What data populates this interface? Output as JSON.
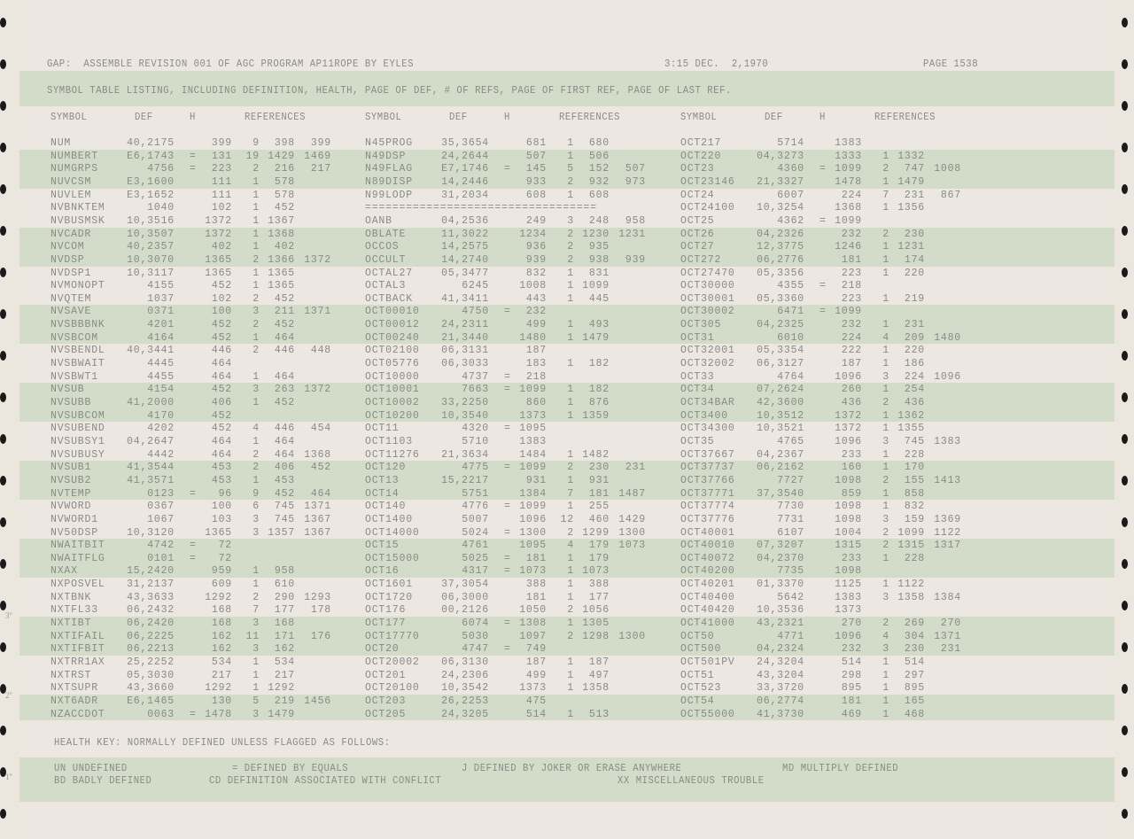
{
  "header": {
    "title": "GAP:  ASSEMBLE REVISION 001 OF AGC PROGRAM AP11ROPE BY EYLES",
    "time_date": "3:15 DEC.  2,1970",
    "page": "PAGE 1538",
    "subtitle": "SYMBOL TABLE LISTING, INCLUDING DEFINITION, HEALTH, PAGE OF DEF, # OF REFS, PAGE OF FIRST REF, PAGE OF LAST REF.",
    "columns": [
      "SYMBOL",
      "DEF",
      "H",
      "REFERENCES"
    ]
  },
  "groups": [
    [
      [
        "NUM",
        "40,2175",
        "",
        "399",
        "9",
        "398",
        "399"
      ],
      [
        "NUMBERT",
        "E6,1743",
        "=",
        "131",
        "19",
        "1429",
        "1469"
      ],
      [
        "NUMGRPS",
        "4756",
        "=",
        "223",
        "2",
        "216",
        "217"
      ],
      [
        "NUVCSM",
        "E3,1600",
        "",
        "111",
        "1",
        "578",
        ""
      ],
      [
        "NUVLEM",
        "E3,1652",
        "",
        "111",
        "1",
        "578",
        ""
      ],
      [
        "NVBNKTEM",
        "1040",
        "",
        "102",
        "1",
        "452",
        ""
      ],
      [
        "NVBUSMSK",
        "10,3516",
        "",
        "1372",
        "1",
        "1367",
        ""
      ],
      [
        "NVCADR",
        "10,3507",
        "",
        "1372",
        "1",
        "1368",
        ""
      ],
      [
        "NVCOM",
        "40,2357",
        "",
        "402",
        "1",
        "402",
        ""
      ],
      [
        "NVDSP",
        "10,3070",
        "",
        "1365",
        "2",
        "1366",
        "1372"
      ],
      [
        "NVDSP1",
        "10,3117",
        "",
        "1365",
        "1",
        "1365",
        ""
      ],
      [
        "NVMONOPT",
        "4155",
        "",
        "452",
        "1",
        "1365",
        ""
      ],
      [
        "NVQTEM",
        "1037",
        "",
        "102",
        "2",
        "452",
        ""
      ],
      [
        "NVSAVE",
        "0371",
        "",
        "100",
        "3",
        "211",
        "1371"
      ],
      [
        "NVSBBBNK",
        "4201",
        "",
        "452",
        "2",
        "452",
        ""
      ],
      [
        "NVSBCOM",
        "4164",
        "",
        "452",
        "1",
        "464",
        ""
      ],
      [
        "NVSBENDL",
        "40,3441",
        "",
        "446",
        "2",
        "446",
        "448"
      ],
      [
        "NVSBWAIT",
        "4445",
        "",
        "464",
        "",
        "",
        ""
      ],
      [
        "NVSBWT1",
        "4455",
        "",
        "464",
        "1",
        "464",
        ""
      ],
      [
        "NVSUB",
        "4154",
        "",
        "452",
        "3",
        "263",
        "1372"
      ],
      [
        "NVSUBB",
        "41,2000",
        "",
        "406",
        "1",
        "452",
        ""
      ],
      [
        "NVSUBCOM",
        "4170",
        "",
        "452",
        "",
        "",
        ""
      ],
      [
        "NVSUBEND",
        "4202",
        "",
        "452",
        "4",
        "446",
        "454"
      ],
      [
        "NVSUBSY1",
        "04,2647",
        "",
        "464",
        "1",
        "464",
        ""
      ],
      [
        "NVSUBUSY",
        "4442",
        "",
        "464",
        "2",
        "464",
        "1368"
      ],
      [
        "NVSUB1",
        "41,3544",
        "",
        "453",
        "2",
        "406",
        "452"
      ],
      [
        "NVSUB2",
        "41,3571",
        "",
        "453",
        "1",
        "453",
        ""
      ],
      [
        "NVTEMP",
        "0123",
        "=",
        "96",
        "9",
        "452",
        "464"
      ],
      [
        "NVWORD",
        "0367",
        "",
        "100",
        "6",
        "745",
        "1371"
      ],
      [
        "NVWORD1",
        "1067",
        "",
        "103",
        "3",
        "745",
        "1367"
      ],
      [
        "NV50DSP",
        "10,3120",
        "",
        "1365",
        "3",
        "1357",
        "1367"
      ],
      [
        "NWAITBIT",
        "4742",
        "=",
        "72",
        "",
        "",
        ""
      ],
      [
        "NWAITFLG",
        "0101",
        "=",
        "72",
        "",
        "",
        ""
      ],
      [
        "NXAX",
        "15,2420",
        "",
        "959",
        "1",
        "958",
        ""
      ],
      [
        "NXPOSVEL",
        "31,2137",
        "",
        "609",
        "1",
        "610",
        ""
      ],
      [
        "NXTBNK",
        "43,3633",
        "",
        "1292",
        "2",
        "290",
        "1293"
      ],
      [
        "NXTFL33",
        "06,2432",
        "",
        "168",
        "7",
        "177",
        "178"
      ],
      [
        "NXTIBT",
        "06,2420",
        "",
        "168",
        "3",
        "168",
        ""
      ],
      [
        "NXTIFAIL",
        "06,2225",
        "",
        "162",
        "11",
        "171",
        "176"
      ],
      [
        "NXTIFBIT",
        "06,2213",
        "",
        "162",
        "3",
        "162",
        ""
      ],
      [
        "NXTRR1AX",
        "25,2252",
        "",
        "534",
        "1",
        "534",
        ""
      ],
      [
        "NXTRST",
        "05,3030",
        "",
        "217",
        "1",
        "217",
        ""
      ],
      [
        "NXTSUPR",
        "43,3660",
        "",
        "1292",
        "1",
        "1292",
        ""
      ],
      [
        "NXT6ADR",
        "E6,1465",
        "",
        "130",
        "5",
        "219",
        "1456"
      ],
      [
        "NZACCDOT",
        "0063",
        "=",
        "1478",
        "3",
        "1479",
        ""
      ]
    ],
    [
      [
        "N45PROG",
        "35,3654",
        "",
        "681",
        "1",
        "680",
        ""
      ],
      [
        "N49DSP",
        "24,2644",
        "",
        "507",
        "1",
        "506",
        ""
      ],
      [
        "N49FLAG",
        "E7,1746",
        "=",
        "145",
        "5",
        "152",
        "507"
      ],
      [
        "N89DISP",
        "14,2446",
        "",
        "933",
        "2",
        "932",
        "973"
      ],
      [
        "N99LODP",
        "31,2034",
        "",
        "608",
        "1",
        "608",
        ""
      ],
      [
        "==================================",
        "",
        "",
        "",
        "",
        "",
        ""
      ],
      [
        "OANB",
        "04,2536",
        "",
        "249",
        "3",
        "248",
        "958"
      ],
      [
        "OBLATE",
        "11,3022",
        "",
        "1234",
        "2",
        "1230",
        "1231"
      ],
      [
        "OCCOS",
        "14,2575",
        "",
        "936",
        "2",
        "935",
        ""
      ],
      [
        "OCCULT",
        "14,2740",
        "",
        "939",
        "2",
        "938",
        "939"
      ],
      [
        "OCTAL27",
        "05,3477",
        "",
        "832",
        "1",
        "831",
        ""
      ],
      [
        "OCTAL3",
        "6245",
        "",
        "1008",
        "1",
        "1099",
        ""
      ],
      [
        "OCTBACK",
        "41,3411",
        "",
        "443",
        "1",
        "445",
        ""
      ],
      [
        "OCT00010",
        "4750",
        "=",
        "232",
        "",
        "",
        ""
      ],
      [
        "OCT00012",
        "24,2311",
        "",
        "499",
        "1",
        "493",
        ""
      ],
      [
        "OCT00240",
        "21,3440",
        "",
        "1480",
        "1",
        "1479",
        ""
      ],
      [
        "OCT02100",
        "06,3131",
        "",
        "187",
        "",
        "",
        ""
      ],
      [
        "OCT05776",
        "06,3033",
        "",
        "183",
        "1",
        "182",
        ""
      ],
      [
        "OCT10000",
        "4737",
        "=",
        "218",
        "",
        "",
        ""
      ],
      [
        "OCT10001",
        "7663",
        "=",
        "1099",
        "1",
        "182",
        ""
      ],
      [
        "OCT10002",
        "33,2250",
        "",
        "860",
        "1",
        "876",
        ""
      ],
      [
        "OCT10200",
        "10,3540",
        "",
        "1373",
        "1",
        "1359",
        ""
      ],
      [
        "OCT11",
        "4320",
        "=",
        "1095",
        "",
        "",
        ""
      ],
      [
        "OCT1103",
        "5710",
        "",
        "1383",
        "",
        "",
        ""
      ],
      [
        "OCT11276",
        "21,3634",
        "",
        "1484",
        "1",
        "1482",
        ""
      ],
      [
        "OCT120",
        "4775",
        "=",
        "1099",
        "2",
        "230",
        "231"
      ],
      [
        "OCT13",
        "15,2217",
        "",
        "931",
        "1",
        "931",
        ""
      ],
      [
        "OCT14",
        "5751",
        "",
        "1384",
        "7",
        "181",
        "1487"
      ],
      [
        "OCT140",
        "4776",
        "=",
        "1099",
        "1",
        "255",
        ""
      ],
      [
        "OCT1400",
        "5007",
        "",
        "1096",
        "12",
        "460",
        "1429"
      ],
      [
        "OCT14000",
        "5024",
        "=",
        "1300",
        "2",
        "1299",
        "1300"
      ],
      [
        "OCT15",
        "4761",
        "",
        "1095",
        "4",
        "179",
        "1073"
      ],
      [
        "OCT15000",
        "5025",
        "=",
        "181",
        "1",
        "179",
        ""
      ],
      [
        "OCT16",
        "4317",
        "=",
        "1073",
        "1",
        "1073",
        ""
      ],
      [
        "OCT1601",
        "37,3054",
        "",
        "388",
        "1",
        "388",
        ""
      ],
      [
        "OCT1720",
        "06,3000",
        "",
        "181",
        "1",
        "177",
        ""
      ],
      [
        "OCT176",
        "00,2126",
        "",
        "1050",
        "2",
        "1056",
        ""
      ],
      [
        "OCT177",
        "6074",
        "=",
        "1308",
        "1",
        "1305",
        ""
      ],
      [
        "OCT17770",
        "5030",
        "",
        "1097",
        "2",
        "1298",
        "1300"
      ],
      [
        "OCT20",
        "4747",
        "=",
        "749",
        "",
        "",
        ""
      ],
      [
        "OCT20002",
        "06,3130",
        "",
        "187",
        "1",
        "187",
        ""
      ],
      [
        "OCT201",
        "24,2306",
        "",
        "499",
        "1",
        "497",
        ""
      ],
      [
        "OCT20100",
        "10,3542",
        "",
        "1373",
        "1",
        "1358",
        ""
      ],
      [
        "OCT203",
        "26,2253",
        "",
        "475",
        "",
        "",
        ""
      ],
      [
        "OCT205",
        "24,3205",
        "",
        "514",
        "1",
        "513",
        ""
      ]
    ],
    [
      [
        "OCT217",
        "5714",
        "",
        "1383",
        "",
        "",
        ""
      ],
      [
        "OCT220",
        "04,3273",
        "",
        "1333",
        "1",
        "1332",
        ""
      ],
      [
        "OCT23",
        "4360",
        "=",
        "1099",
        "2",
        "747",
        "1008"
      ],
      [
        "OCT23146",
        "21,3327",
        "",
        "1478",
        "1",
        "1479",
        ""
      ],
      [
        "OCT24",
        "6007",
        "",
        "224",
        "7",
        "231",
        "867"
      ],
      [
        "OCT24100",
        "10,3254",
        "",
        "1368",
        "1",
        "1356",
        ""
      ],
      [
        "OCT25",
        "4362",
        "=",
        "1099",
        "",
        "",
        ""
      ],
      [
        "OCT26",
        "04,2326",
        "",
        "232",
        "2",
        "230",
        ""
      ],
      [
        "OCT27",
        "12,3775",
        "",
        "1246",
        "1",
        "1231",
        ""
      ],
      [
        "OCT272",
        "06,2776",
        "",
        "181",
        "1",
        "174",
        ""
      ],
      [
        "OCT27470",
        "05,3356",
        "",
        "223",
        "1",
        "220",
        ""
      ],
      [
        "OCT30000",
        "4355",
        "=",
        "218",
        "",
        "",
        ""
      ],
      [
        "OCT30001",
        "05,3360",
        "",
        "223",
        "1",
        "219",
        ""
      ],
      [
        "OCT30002",
        "6471",
        "=",
        "1099",
        "",
        "",
        ""
      ],
      [
        "OCT305",
        "04,2325",
        "",
        "232",
        "1",
        "231",
        ""
      ],
      [
        "OCT31",
        "6010",
        "",
        "224",
        "4",
        "209",
        "1480"
      ],
      [
        "OCT32001",
        "05,3354",
        "",
        "222",
        "1",
        "220",
        ""
      ],
      [
        "OCT32002",
        "06,3127",
        "",
        "187",
        "1",
        "186",
        ""
      ],
      [
        "OCT33",
        "4764",
        "",
        "1096",
        "3",
        "224",
        "1096"
      ],
      [
        "OCT34",
        "07,2624",
        "",
        "260",
        "1",
        "254",
        ""
      ],
      [
        "OCT34BAR",
        "42,3600",
        "",
        "436",
        "2",
        "436",
        ""
      ],
      [
        "OCT3400",
        "10,3512",
        "",
        "1372",
        "1",
        "1362",
        ""
      ],
      [
        "OCT34300",
        "10,3521",
        "",
        "1372",
        "1",
        "1355",
        ""
      ],
      [
        "OCT35",
        "4765",
        "",
        "1096",
        "3",
        "745",
        "1383"
      ],
      [
        "OCT37667",
        "04,2367",
        "",
        "233",
        "1",
        "228",
        ""
      ],
      [
        "OCT37737",
        "06,2162",
        "",
        "160",
        "1",
        "170",
        ""
      ],
      [
        "OCT37766",
        "7727",
        "",
        "1098",
        "2",
        "155",
        "1413"
      ],
      [
        "OCT37771",
        "37,3540",
        "",
        "859",
        "1",
        "858",
        ""
      ],
      [
        "OCT37774",
        "7730",
        "",
        "1098",
        "1",
        "832",
        ""
      ],
      [
        "OCT37776",
        "7731",
        "",
        "1098",
        "3",
        "159",
        "1369"
      ],
      [
        "OCT40001",
        "6107",
        "",
        "1004",
        "2",
        "1099",
        "1122"
      ],
      [
        "OCT40010",
        "07,3207",
        "",
        "1315",
        "2",
        "1315",
        "1317"
      ],
      [
        "OCT40072",
        "04,2370",
        "",
        "233",
        "1",
        "228",
        ""
      ],
      [
        "OCT40200",
        "7735",
        "",
        "1098",
        "",
        "",
        ""
      ],
      [
        "OCT40201",
        "01,3370",
        "",
        "1125",
        "1",
        "1122",
        ""
      ],
      [
        "OCT40400",
        "5642",
        "",
        "1383",
        "3",
        "1358",
        "1384"
      ],
      [
        "OCT40420",
        "10,3536",
        "",
        "1373",
        "",
        "",
        ""
      ],
      [
        "OCT41000",
        "43,2321",
        "",
        "270",
        "2",
        "269",
        "270"
      ],
      [
        "OCT50",
        "4771",
        "",
        "1096",
        "4",
        "304",
        "1371"
      ],
      [
        "OCT500",
        "04,2324",
        "",
        "232",
        "3",
        "230",
        "231"
      ],
      [
        "OCT501PV",
        "24,3204",
        "",
        "514",
        "1",
        "514",
        ""
      ],
      [
        "OCT51",
        "43,3204",
        "",
        "298",
        "1",
        "297",
        ""
      ],
      [
        "OCT523",
        "33,3720",
        "",
        "895",
        "1",
        "895",
        ""
      ],
      [
        "OCT54",
        "06,2774",
        "",
        "181",
        "1",
        "165",
        ""
      ],
      [
        "OCT55000",
        "41,3730",
        "",
        "469",
        "1",
        "468",
        ""
      ]
    ]
  ],
  "footer": {
    "key_title": "HEALTH KEY: NORMALLY DEFINED UNLESS FLAGGED AS FOLLOWS:",
    "line1": [
      "UN UNDEFINED",
      "= DEFINED BY EQUALS",
      "J DEFINED BY JOKER OR ERASE ANYWHERE",
      "MD MULTIPLY DEFINED"
    ],
    "line2": [
      "BD BADLY DEFINED",
      "CD DEFINITION ASSOCIATED WITH CONFLICT",
      "XX MISCELLANEOUS TROUBLE"
    ]
  },
  "margin_marks": [
    "3''",
    "2''",
    "1''"
  ],
  "colors": {
    "paper": "#ece8e1",
    "greenbar": "#d3dcc8",
    "ink": "#8a8a86"
  }
}
